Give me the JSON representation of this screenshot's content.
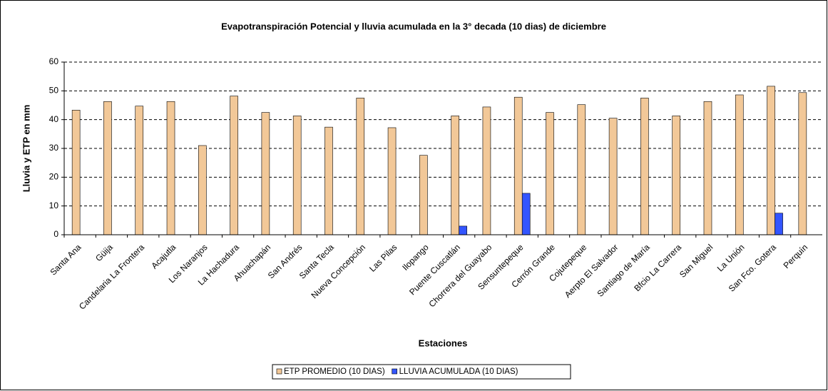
{
  "chart_data": {
    "type": "bar",
    "title": "Evapotranspiración Potencial y lluvia acumulada en la 3° decada (10 dias) de diciembre",
    "x_label": "Estaciones",
    "y_label": "Lluvia y ETP en mm",
    "categories": [
      "Santa Ana",
      "Güija",
      "Candelaria  La Frontera",
      "Acajutla",
      "Los Naranjos",
      "La Hachadura",
      "Ahuachapán",
      "San Andrés",
      "Santa Tecla",
      "Nueva Concepción",
      "Las Pilas",
      "Ilopango",
      "Puente Cuscatlán",
      "Chorrera del Guayabo",
      "Sensuntepeque",
      "Cerrón Grande",
      "Cojutepeque",
      "Aerpto El Salvador",
      "Santiago de María",
      "Bfcio La Carrera",
      "San Miguel",
      "La Unión",
      "San Fco. Gotera",
      "Perquín"
    ],
    "series": [
      {
        "name": "ETP PROMEDIO (10 DIAS)",
        "color": "#f2c898",
        "values": [
          43.3,
          46.3,
          44.7,
          46.3,
          31,
          48.2,
          42.5,
          41.3,
          37.4,
          47.5,
          37.2,
          27.6,
          41.3,
          44.4,
          47.8,
          42.5,
          45.2,
          40.5,
          47.5,
          41.3,
          46.3,
          48.6,
          51.6,
          49.4
        ]
      },
      {
        "name": "LLUVIA ACUMULADA (10 DIAS)",
        "color": "#3355ff",
        "values": [
          0,
          0,
          0,
          0,
          0,
          0,
          0,
          0,
          0,
          0,
          0,
          0,
          3,
          0,
          14.4,
          0,
          0,
          0,
          0,
          0,
          0,
          0,
          7.5,
          0
        ]
      }
    ],
    "ylim": [
      0,
      60
    ],
    "yticks": [
      0,
      10,
      20,
      30,
      40,
      50,
      60
    ],
    "grid": true,
    "legend": "bottom"
  }
}
